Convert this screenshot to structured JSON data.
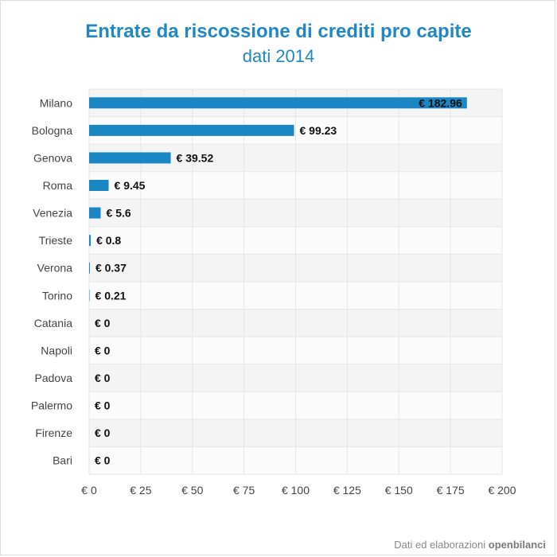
{
  "chart_data": {
    "type": "bar",
    "orientation": "horizontal",
    "title": "Entrate da riscossione di crediti pro capite",
    "subtitle": "dati 2014",
    "categories": [
      "Milano",
      "Bologna",
      "Genova",
      "Roma",
      "Venezia",
      "Trieste",
      "Verona",
      "Torino",
      "Catania",
      "Napoli",
      "Padova",
      "Palermo",
      "Firenze",
      "Bari"
    ],
    "values": [
      182.96,
      99.23,
      39.52,
      9.45,
      5.6,
      0.8,
      0.37,
      0.21,
      0,
      0,
      0,
      0,
      0,
      0
    ],
    "data_labels": [
      "€ 182.96",
      "€ 99.23",
      "€ 39.52",
      "€ 9.45",
      "€ 5.6",
      "€ 0.8",
      "€ 0.37",
      "€ 0.21",
      "€ 0",
      "€ 0",
      "€ 0",
      "€ 0",
      "€ 0",
      "€ 0"
    ],
    "x_ticks": [
      0,
      25,
      50,
      75,
      100,
      125,
      150,
      175,
      200
    ],
    "x_tick_labels": [
      "€ 0",
      "€ 25",
      "€ 50",
      "€ 75",
      "€ 100",
      "€ 125",
      "€ 150",
      "€ 175",
      "€ 200"
    ],
    "xlim": [
      0,
      200
    ],
    "xlabel": "",
    "ylabel": "",
    "grid": true,
    "legend": "none",
    "bar_color": "#1a87c4"
  },
  "footer": {
    "text": "Dati ed elaborazioni ",
    "brand": "openbilanci"
  }
}
